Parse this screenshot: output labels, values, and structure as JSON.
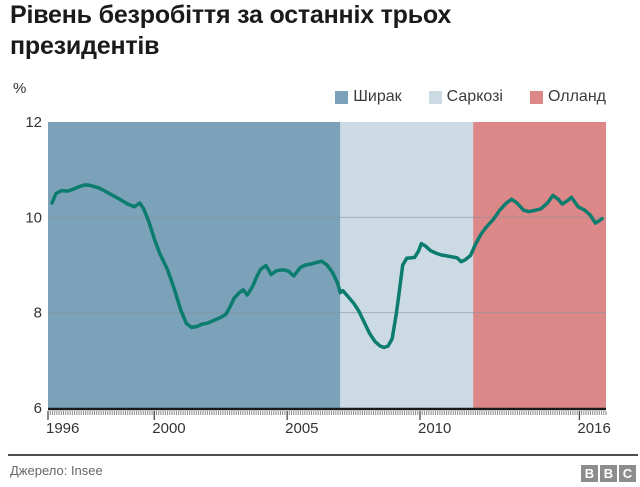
{
  "header": {
    "title": "Рівень безробіття за останніх трьох президентів"
  },
  "legend": {
    "items": [
      {
        "key": "chirac",
        "label": "Ширак",
        "color": "#7ba2b9"
      },
      {
        "key": "sarkozy",
        "label": "Саркозі",
        "color": "#cbdae3"
      },
      {
        "key": "hollande",
        "label": "Олланд",
        "color": "#dd8888"
      }
    ]
  },
  "footer": {
    "source": "Джерело: Insee",
    "logo_letters": [
      "B",
      "B",
      "C"
    ]
  },
  "chart_data": {
    "type": "line",
    "title": "Рівень безробіття за останніх трьох президентів",
    "y_unit": "%",
    "xlabel": "",
    "ylabel": "%",
    "x_domain": [
      1996,
      2017
    ],
    "y_domain": [
      6,
      12
    ],
    "x_ticks": [
      {
        "year": 1996,
        "label": "1996"
      },
      {
        "year": 2000,
        "label": "2000"
      },
      {
        "year": 2005,
        "label": "2005"
      },
      {
        "year": 2010,
        "label": "2010"
      },
      {
        "year": 2016,
        "label": "2016"
      }
    ],
    "y_ticks": [
      12,
      10,
      8,
      6
    ],
    "y_gridlines": [
      10,
      8
    ],
    "grid": "horizontal",
    "legend_position": "top-right",
    "minor_x_tick_interval_years": 0.08333,
    "bands": [
      {
        "key": "chirac",
        "name": "Ширак",
        "from": 1996,
        "to": 2007,
        "color": "#7ba2b9"
      },
      {
        "key": "sarkozy",
        "name": "Саркозі",
        "from": 2007,
        "to": 2012,
        "color": "#cbdae3"
      },
      {
        "key": "hollande",
        "name": "Олланд",
        "from": 2012,
        "to": 2017,
        "color": "#dd8888"
      }
    ],
    "series": [
      {
        "name": "Рівень безробіття, %",
        "color": "#0b7c6e",
        "points": [
          [
            1996.15,
            10.3
          ],
          [
            1996.3,
            10.5
          ],
          [
            1996.5,
            10.56
          ],
          [
            1996.75,
            10.55
          ],
          [
            1997.0,
            10.6
          ],
          [
            1997.2,
            10.65
          ],
          [
            1997.4,
            10.68
          ],
          [
            1997.6,
            10.67
          ],
          [
            1997.9,
            10.62
          ],
          [
            1998.15,
            10.55
          ],
          [
            1998.4,
            10.47
          ],
          [
            1998.7,
            10.38
          ],
          [
            1999.0,
            10.28
          ],
          [
            1999.25,
            10.22
          ],
          [
            1999.45,
            10.3
          ],
          [
            1999.6,
            10.18
          ],
          [
            1999.8,
            9.9
          ],
          [
            2000.0,
            9.55
          ],
          [
            2000.2,
            9.25
          ],
          [
            2000.5,
            8.9
          ],
          [
            2000.75,
            8.5
          ],
          [
            2001.0,
            8.05
          ],
          [
            2001.2,
            7.78
          ],
          [
            2001.4,
            7.69
          ],
          [
            2001.6,
            7.71
          ],
          [
            2001.8,
            7.76
          ],
          [
            2002.0,
            7.78
          ],
          [
            2002.25,
            7.84
          ],
          [
            2002.5,
            7.9
          ],
          [
            2002.7,
            7.97
          ],
          [
            2002.85,
            8.12
          ],
          [
            2003.0,
            8.3
          ],
          [
            2003.2,
            8.42
          ],
          [
            2003.35,
            8.48
          ],
          [
            2003.5,
            8.37
          ],
          [
            2003.7,
            8.55
          ],
          [
            2003.85,
            8.75
          ],
          [
            2004.0,
            8.91
          ],
          [
            2004.2,
            8.99
          ],
          [
            2004.4,
            8.8
          ],
          [
            2004.6,
            8.88
          ],
          [
            2004.85,
            8.9
          ],
          [
            2005.05,
            8.87
          ],
          [
            2005.25,
            8.77
          ],
          [
            2005.5,
            8.95
          ],
          [
            2005.7,
            9.0
          ],
          [
            2005.9,
            9.02
          ],
          [
            2006.1,
            9.05
          ],
          [
            2006.3,
            9.08
          ],
          [
            2006.5,
            9.0
          ],
          [
            2006.7,
            8.85
          ],
          [
            2006.9,
            8.62
          ],
          [
            2007.0,
            8.42
          ],
          [
            2007.1,
            8.46
          ],
          [
            2007.3,
            8.33
          ],
          [
            2007.5,
            8.2
          ],
          [
            2007.7,
            8.03
          ],
          [
            2007.9,
            7.8
          ],
          [
            2008.1,
            7.57
          ],
          [
            2008.3,
            7.4
          ],
          [
            2008.5,
            7.3
          ],
          [
            2008.65,
            7.27
          ],
          [
            2008.8,
            7.3
          ],
          [
            2008.95,
            7.45
          ],
          [
            2009.1,
            7.95
          ],
          [
            2009.2,
            8.35
          ],
          [
            2009.35,
            9.0
          ],
          [
            2009.5,
            9.14
          ],
          [
            2009.65,
            9.15
          ],
          [
            2009.8,
            9.16
          ],
          [
            2009.95,
            9.3
          ],
          [
            2010.05,
            9.45
          ],
          [
            2010.2,
            9.4
          ],
          [
            2010.4,
            9.3
          ],
          [
            2010.6,
            9.25
          ],
          [
            2010.8,
            9.21
          ],
          [
            2011.0,
            9.19
          ],
          [
            2011.2,
            9.17
          ],
          [
            2011.4,
            9.15
          ],
          [
            2011.55,
            9.07
          ],
          [
            2011.7,
            9.11
          ],
          [
            2011.9,
            9.2
          ],
          [
            2012.1,
            9.45
          ],
          [
            2012.3,
            9.65
          ],
          [
            2012.5,
            9.8
          ],
          [
            2012.75,
            9.95
          ],
          [
            2013.0,
            10.15
          ],
          [
            2013.25,
            10.3
          ],
          [
            2013.45,
            10.38
          ],
          [
            2013.65,
            10.3
          ],
          [
            2013.9,
            10.15
          ],
          [
            2014.1,
            10.12
          ],
          [
            2014.35,
            10.15
          ],
          [
            2014.55,
            10.18
          ],
          [
            2014.8,
            10.3
          ],
          [
            2015.0,
            10.46
          ],
          [
            2015.2,
            10.38
          ],
          [
            2015.35,
            10.28
          ],
          [
            2015.55,
            10.35
          ],
          [
            2015.7,
            10.42
          ],
          [
            2015.95,
            10.22
          ],
          [
            2016.2,
            10.15
          ],
          [
            2016.4,
            10.05
          ],
          [
            2016.6,
            9.88
          ],
          [
            2016.85,
            9.97
          ]
        ]
      }
    ]
  }
}
